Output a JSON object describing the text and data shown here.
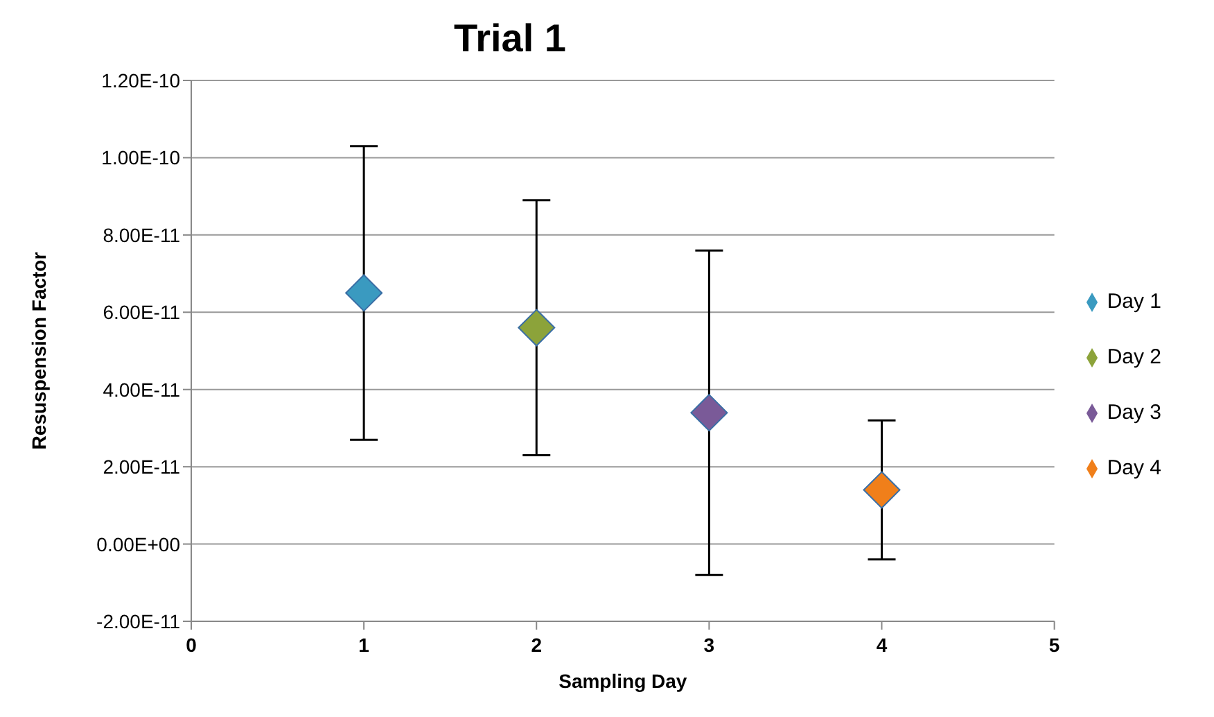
{
  "chart_data": {
    "type": "scatter",
    "title": "Trial 1",
    "xlabel": "Sampling Day",
    "ylabel": "Resuspension Factor",
    "series": [
      {
        "name": "Day 1",
        "color": "#3a9ac0",
        "x": [
          1
        ],
        "values": [
          6.5e-11
        ],
        "errors": [
          3.8e-11
        ]
      },
      {
        "name": "Day 2",
        "color": "#8ca33a",
        "x": [
          2
        ],
        "values": [
          5.6e-11
        ],
        "errors": [
          3.3e-11
        ]
      },
      {
        "name": "Day 3",
        "color": "#7a5a98",
        "x": [
          3
        ],
        "values": [
          3.4e-11
        ],
        "errors": [
          4.2e-11
        ]
      },
      {
        "name": "Day 4",
        "color": "#f07f1a",
        "x": [
          4
        ],
        "values": [
          1.4e-11
        ],
        "errors": [
          1.8e-11
        ]
      }
    ],
    "xlim": [
      0,
      5
    ],
    "xticks": [
      0,
      1,
      2,
      3,
      4,
      5
    ],
    "ylim": [
      -2e-11,
      1.2e-10
    ],
    "yticks": [
      {
        "value": -2e-11,
        "label": "-2.00E-11"
      },
      {
        "value": 0,
        "label": "0.00E+00"
      },
      {
        "value": 2e-11,
        "label": "2.00E-11"
      },
      {
        "value": 4e-11,
        "label": "4.00E-11"
      },
      {
        "value": 6e-11,
        "label": "6.00E-11"
      },
      {
        "value": 8e-11,
        "label": "8.00E-11"
      },
      {
        "value": 1e-10,
        "label": "1.00E-10"
      },
      {
        "value": 1.2e-10,
        "label": "1.20E-10"
      }
    ],
    "grid": "y",
    "legend": "right",
    "marker": "diamond"
  }
}
